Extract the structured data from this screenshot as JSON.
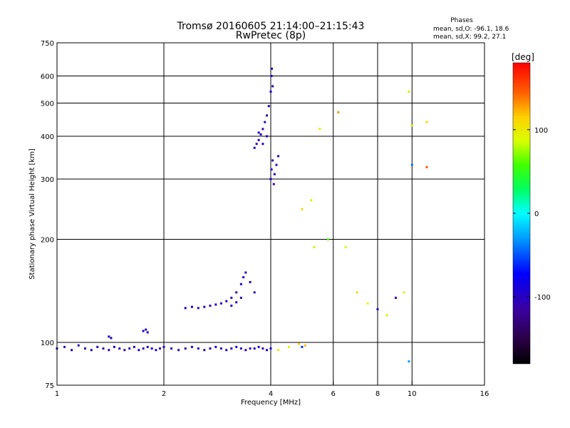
{
  "chart_data": {
    "type": "scatter",
    "title": "Tromsø 20160605 21:14:00–21:15:43",
    "subtitle": "RwPretec (8p)",
    "phases_box": {
      "title": "Phases",
      "line_o": "mean, sd,O: -96.1, 18.6",
      "line_x": "mean, sd,X:  99.2, 27.1"
    },
    "xlabel": "Frequency [MHz]",
    "ylabel": "Stationary phase Virtual Height [km]",
    "x_scale": "log2",
    "y_scale": "log",
    "xlim": [
      1,
      16
    ],
    "ylim": [
      75,
      750
    ],
    "x_ticks": [
      1,
      2,
      4,
      6,
      8,
      10,
      16
    ],
    "y_ticks": [
      75,
      100,
      200,
      300,
      400,
      500,
      600,
      750
    ],
    "x_grid": [
      2,
      4,
      6,
      8,
      10
    ],
    "y_grid": [
      100,
      200,
      300,
      400,
      500,
      600
    ],
    "colorbar": {
      "label": "[deg]",
      "range": [
        -180,
        180
      ],
      "ticks": [
        100,
        0,
        -100
      ],
      "colormap": "rainbow (black-purple-blue-cyan-green-yellow-red)"
    },
    "series": [
      {
        "description": "bottom trace",
        "points": [
          [
            1.0,
            96,
            -100
          ],
          [
            1.05,
            97,
            -105
          ],
          [
            1.1,
            95,
            -95
          ],
          [
            1.15,
            98,
            -110
          ],
          [
            1.2,
            96,
            -100
          ],
          [
            1.25,
            95,
            -90
          ],
          [
            1.3,
            97,
            -100
          ],
          [
            1.35,
            96,
            -110
          ],
          [
            1.4,
            95,
            -100
          ],
          [
            1.45,
            97,
            -95
          ],
          [
            1.5,
            96,
            -100
          ],
          [
            1.55,
            95,
            -105
          ],
          [
            1.6,
            96,
            -100
          ],
          [
            1.65,
            97,
            -110
          ],
          [
            1.7,
            95,
            -95
          ],
          [
            1.75,
            96,
            -100
          ],
          [
            1.8,
            97,
            -105
          ],
          [
            1.85,
            96,
            -90
          ],
          [
            1.9,
            95,
            -100
          ],
          [
            1.95,
            96,
            -110
          ],
          [
            2.0,
            97,
            -100
          ],
          [
            2.1,
            96,
            -95
          ],
          [
            2.2,
            95,
            -100
          ],
          [
            2.3,
            96,
            -105
          ],
          [
            2.4,
            97,
            -100
          ],
          [
            2.5,
            96,
            -95
          ],
          [
            2.6,
            95,
            -110
          ],
          [
            2.7,
            96,
            -100
          ],
          [
            2.8,
            97,
            -95
          ],
          [
            2.9,
            96,
            -100
          ],
          [
            3.0,
            95,
            -105
          ],
          [
            3.1,
            96,
            -100
          ],
          [
            3.2,
            97,
            -90
          ],
          [
            3.3,
            96,
            -100
          ],
          [
            3.4,
            95,
            -110
          ],
          [
            3.5,
            96,
            -100
          ],
          [
            3.6,
            96,
            -95
          ],
          [
            3.7,
            97,
            -100
          ],
          [
            3.8,
            96,
            -105
          ],
          [
            3.9,
            95,
            -100
          ],
          [
            4.0,
            96,
            -90
          ],
          [
            1.4,
            104,
            -100
          ],
          [
            1.42,
            103,
            -95
          ],
          [
            1.75,
            108,
            -100
          ],
          [
            1.78,
            109,
            -105
          ],
          [
            1.8,
            107,
            -100
          ]
        ]
      },
      {
        "description": "lower trace",
        "points": [
          [
            2.3,
            126,
            -100
          ],
          [
            2.4,
            127,
            -95
          ],
          [
            2.5,
            126,
            -105
          ],
          [
            2.6,
            127,
            -100
          ],
          [
            2.7,
            128,
            -110
          ],
          [
            2.8,
            129,
            -100
          ],
          [
            2.9,
            130,
            -95
          ],
          [
            3.0,
            132,
            -105
          ],
          [
            3.1,
            135,
            -100
          ],
          [
            3.2,
            140,
            -110
          ],
          [
            3.3,
            148,
            -100
          ],
          [
            3.35,
            155,
            -95
          ],
          [
            3.4,
            160,
            -100
          ],
          [
            3.5,
            150,
            -105
          ],
          [
            3.6,
            140,
            -100
          ],
          [
            3.1,
            128,
            -100
          ],
          [
            3.2,
            131,
            -95
          ],
          [
            3.3,
            135,
            -110
          ]
        ]
      },
      {
        "description": "upper trace",
        "points": [
          [
            3.6,
            370,
            -100
          ],
          [
            3.65,
            380,
            -110
          ],
          [
            3.7,
            390,
            -100
          ],
          [
            3.75,
            405,
            -95
          ],
          [
            3.8,
            420,
            -105
          ],
          [
            3.85,
            440,
            -100
          ],
          [
            3.9,
            460,
            -110
          ],
          [
            3.95,
            490,
            -100
          ],
          [
            4.0,
            540,
            -100
          ],
          [
            4.02,
            600,
            -95
          ],
          [
            4.03,
            630,
            -105
          ],
          [
            4.05,
            560,
            -100
          ],
          [
            4.0,
            300,
            -100
          ],
          [
            4.02,
            320,
            -95
          ],
          [
            4.05,
            340,
            -105
          ],
          [
            4.1,
            310,
            -100
          ],
          [
            4.08,
            290,
            -110
          ],
          [
            4.15,
            330,
            -100
          ],
          [
            4.2,
            350,
            -100
          ],
          [
            3.7,
            410,
            -95
          ],
          [
            3.8,
            380,
            -105
          ],
          [
            3.9,
            400,
            -100
          ]
        ]
      },
      {
        "description": "scattered points",
        "points": [
          [
            4.5,
            97,
            90
          ],
          [
            4.8,
            99,
            110
          ],
          [
            5.0,
            98,
            120
          ],
          [
            4.2,
            95,
            100
          ],
          [
            4.9,
            245,
            110
          ],
          [
            5.2,
            260,
            100
          ],
          [
            5.3,
            190,
            80
          ],
          [
            5.8,
            200,
            60
          ],
          [
            6.2,
            470,
            130
          ],
          [
            5.5,
            420,
            95
          ],
          [
            6.5,
            190,
            90
          ],
          [
            7.0,
            140,
            110
          ],
          [
            7.5,
            130,
            90
          ],
          [
            8.0,
            125,
            -100
          ],
          [
            8.5,
            120,
            100
          ],
          [
            9.0,
            135,
            -95
          ],
          [
            9.5,
            140,
            95
          ],
          [
            9.8,
            540,
            100
          ],
          [
            10.0,
            430,
            100
          ],
          [
            11.0,
            440,
            110
          ],
          [
            10.0,
            330,
            -40
          ],
          [
            11.0,
            325,
            150
          ],
          [
            9.8,
            88,
            -30
          ],
          [
            4.9,
            97,
            -60
          ]
        ]
      }
    ]
  }
}
